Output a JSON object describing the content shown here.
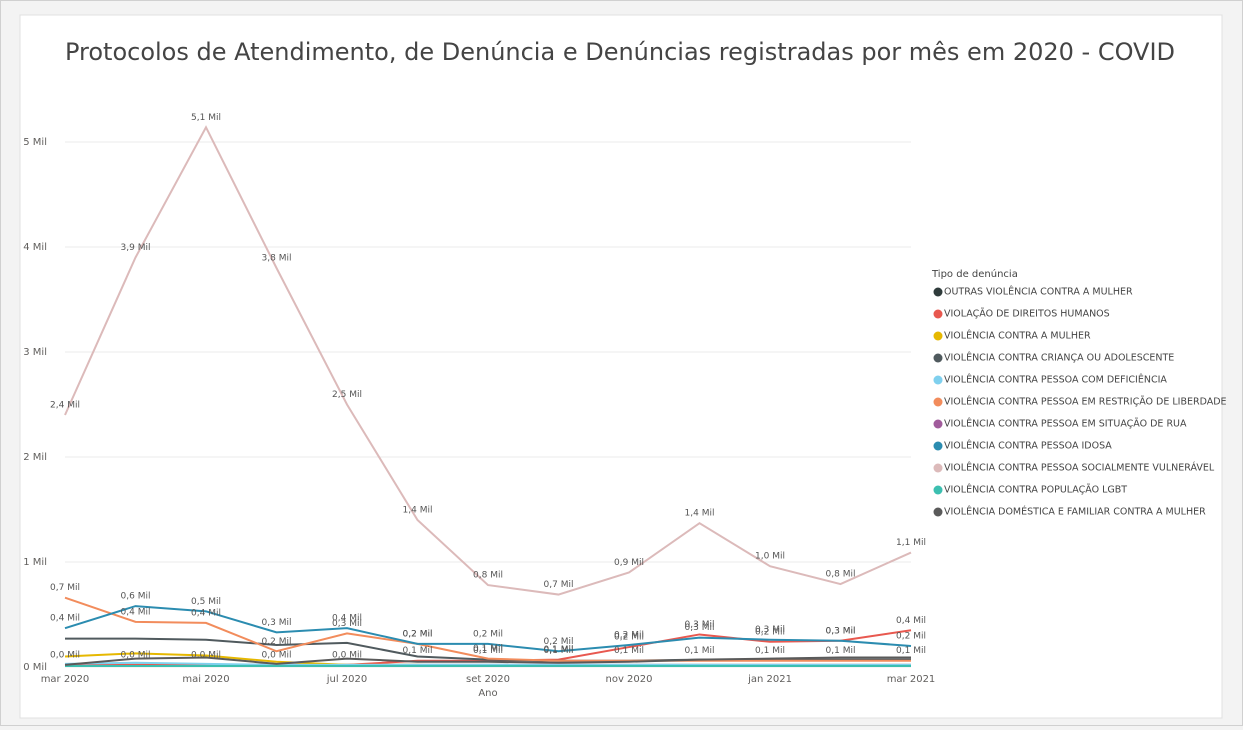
{
  "chart_data": {
    "type": "line",
    "title": "Protocolos de Atendimento, de Denúncia e Denúncias registradas por mês em 2020 - COVID",
    "x_label": "Ano",
    "legend_title": "Tipo de denúncia",
    "legend": "right",
    "grid": true,
    "categories": [
      "mar 2020",
      null,
      "mai 2020",
      null,
      "jul 2020",
      null,
      "set 2020",
      null,
      "nov 2020",
      null,
      "jan 2021",
      null,
      "mar 2021"
    ],
    "ylim": [
      0,
      5400
    ],
    "yticks": [
      {
        "value": 0,
        "label": "0 Mil"
      },
      {
        "value": 1000,
        "label": "1 Mil"
      },
      {
        "value": 2000,
        "label": "2 Mil"
      },
      {
        "value": 3000,
        "label": "3 Mil"
      },
      {
        "value": 4000,
        "label": "4 Mil"
      },
      {
        "value": 5000,
        "label": "5 Mil"
      }
    ],
    "series": [
      {
        "name": "OUTRAS VIOLÊNCIA CONTRA A MULHER",
        "color": "#2f3b3b",
        "values": [
          20,
          20,
          20,
          20,
          20,
          20,
          20,
          20,
          20,
          20,
          20,
          20,
          20
        ]
      },
      {
        "name": "VIOLAÇÃO DE DIREITOS HUMANOS",
        "color": "#e8584f",
        "values": [
          20,
          20,
          20,
          20,
          20,
          60,
          60,
          70,
          190,
          310,
          240,
          250,
          350
        ],
        "value_labels": [
          "0,0 Mil",
          "0,0 Mil",
          "0,0 Mil",
          "0,0 Mil",
          "0,0 Mil",
          "0,1 Mil",
          "0,1 Mil",
          "0,1 Mil",
          "0,2 Mil",
          "0,3 Mil",
          "0,2 Mil",
          "0,3 Mil",
          "0,4 Mil"
        ]
      },
      {
        "name": "VIOLÊNCIA CONTRA A MULHER",
        "color": "#e6b800",
        "values": [
          100,
          130,
          110,
          50,
          20,
          20,
          10,
          10,
          10,
          10,
          10,
          10,
          10
        ]
      },
      {
        "name": "VIOLÊNCIA CONTRA CRIANÇA OU ADOLESCENTE",
        "color": "#505a5e",
        "values": [
          270,
          270,
          260,
          210,
          230,
          100,
          70,
          60,
          60,
          70,
          70,
          70,
          70
        ]
      },
      {
        "name": "VIOLÊNCIA CONTRA PESSOA COM DEFICIÊNCIA",
        "color": "#7fd0ee",
        "values": [
          30,
          40,
          30,
          20,
          20,
          20,
          20,
          20,
          20,
          20,
          20,
          20,
          20
        ]
      },
      {
        "name": "VIOLÊNCIA CONTRA PESSOA EM RESTRIÇÃO DE LIBERDADE",
        "color": "#f28c5c",
        "values": [
          660,
          430,
          420,
          150,
          320,
          220,
          80,
          60,
          60,
          60,
          60,
          60,
          60
        ],
        "value_labels": [
          "0,7 Mil",
          "0,4 Mil",
          "0,4 Mil",
          "0,2 Mil",
          "0,3 Mil",
          "0,2 Mil",
          "0,1 Mil",
          "0,1 Mil",
          "0,1 Mil",
          "0,1 Mil",
          "0,1 Mil",
          "0,1 Mil",
          "0,1 Mil"
        ]
      },
      {
        "name": "VIOLÊNCIA CONTRA PESSOA EM SITUAÇÃO DE RUA",
        "color": "#a15c9c",
        "values": [
          10,
          10,
          10,
          10,
          10,
          10,
          10,
          10,
          10,
          10,
          10,
          10,
          10
        ]
      },
      {
        "name": "VIOLÊNCIA CONTRA PESSOA IDOSA",
        "color": "#2b8cb0",
        "values": [
          370,
          580,
          530,
          330,
          370,
          220,
          220,
          150,
          210,
          280,
          260,
          250,
          200
        ],
        "value_labels": [
          "0,4 Mil",
          "0,6 Mil",
          "0,5 Mil",
          "0,3 Mil",
          "0,4 Mil",
          "0,2 Mil",
          "0,2 Mil",
          "0,2 Mil",
          "0,2 Mil",
          "0,3 Mil",
          "0,3 Mil",
          "0,3 Mil",
          "0,2 Mil"
        ]
      },
      {
        "name": "VIOLÊNCIA CONTRA PESSOA SOCIALMENTE VULNERÁVEL",
        "color": "#dcbaba",
        "values": [
          2400,
          3900,
          5140,
          3800,
          2500,
          1400,
          780,
          690,
          900,
          1370,
          960,
          790,
          1090
        ],
        "value_labels": [
          "2,4 Mil",
          "3,9 Mil",
          "5,1 Mil",
          "3,8 Mil",
          "2,5 Mil",
          "1,4 Mil",
          "0,8 Mil",
          "0,7 Mil",
          "0,9 Mil",
          "1,4 Mil",
          "1,0 Mil",
          "0,8 Mil",
          "1,1 Mil"
        ]
      },
      {
        "name": "VIOLÊNCIA CONTRA POPULAÇÃO LGBT",
        "color": "#3cbfb0",
        "values": [
          10,
          10,
          10,
          10,
          10,
          10,
          10,
          10,
          10,
          10,
          10,
          10,
          10
        ]
      },
      {
        "name": "VIOLÊNCIA DOMÉSTICA E FAMILIAR CONTRA A MULHER",
        "color": "#5a5a5a",
        "values": [
          20,
          80,
          90,
          30,
          80,
          50,
          50,
          40,
          50,
          70,
          80,
          90,
          90
        ]
      }
    ]
  }
}
